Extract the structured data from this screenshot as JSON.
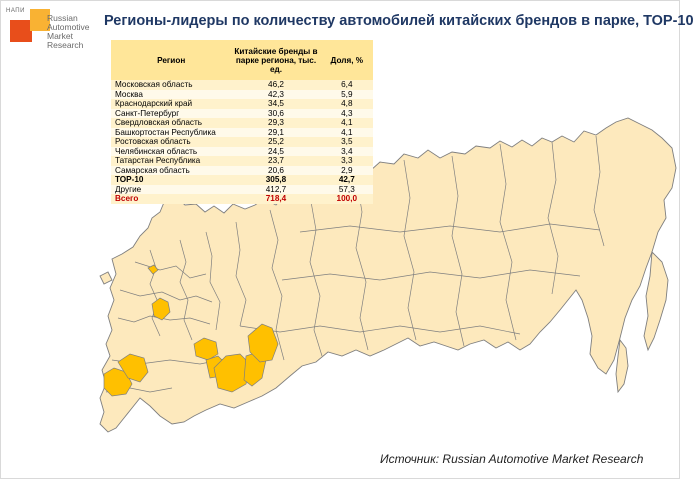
{
  "logo": {
    "tag": "НАПИ",
    "lines": [
      "Russian",
      "Automotive",
      "Market",
      "Research"
    ]
  },
  "title": "Регионы-лидеры по количеству автомобилей китайских брендов в парке, ТОР-10",
  "colors": {
    "land": "#fde9bd",
    "highlight": "#ffc000",
    "border": "#7f7f7f",
    "header": "#ffe699",
    "total": "#c00000"
  },
  "chart_data": {
    "type": "table",
    "columns": [
      "Регион",
      "Китайские бренды в парке региона, тыс. ед.",
      "Доля, %"
    ],
    "rows": [
      [
        "Московская область",
        "46,2",
        "6,4"
      ],
      [
        "Москва",
        "42,3",
        "5,9"
      ],
      [
        "Краснодарский край",
        "34,5",
        "4,8"
      ],
      [
        "Санкт-Петербург",
        "30,6",
        "4,3"
      ],
      [
        "Свердловская область",
        "29,3",
        "4,1"
      ],
      [
        "Башкортостан Республика",
        "29,1",
        "4,1"
      ],
      [
        "Ростовская область",
        "25,2",
        "3,5"
      ],
      [
        "Челябинская область",
        "24,5",
        "3,4"
      ],
      [
        "Татарстан Республика",
        "23,7",
        "3,3"
      ],
      [
        "Самарская область",
        "20,6",
        "2,9"
      ],
      [
        "ТОР-10",
        "305,8",
        "42,7"
      ],
      [
        "Другие",
        "412,7",
        "57,3"
      ],
      [
        "Всего",
        "718,4",
        "100,0"
      ]
    ]
  },
  "source": "Источник: Russian Automotive Market Research"
}
